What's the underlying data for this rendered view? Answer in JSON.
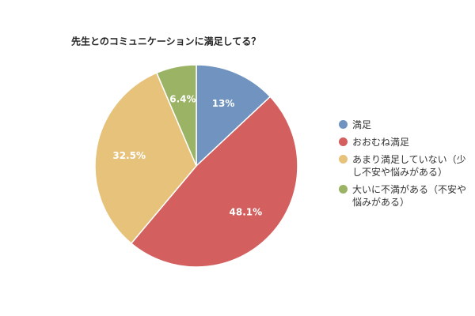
{
  "chart_data": {
    "type": "pie",
    "title": "先生とのコミュニケーションに満足してる？",
    "categories": [
      "満足",
      "おおむね満足",
      "あまり満足していない（少し不安や悩みがある）",
      "大いに不満がある（不安や悩みがある）"
    ],
    "values": [
      13,
      48.1,
      32.5,
      6.4
    ],
    "value_labels": [
      "13%",
      "48.1%",
      "32.5%",
      "6.4%"
    ],
    "colors": [
      "#7094bf",
      "#d35f5f",
      "#e6c27b",
      "#9ab365"
    ],
    "legend": "right"
  }
}
